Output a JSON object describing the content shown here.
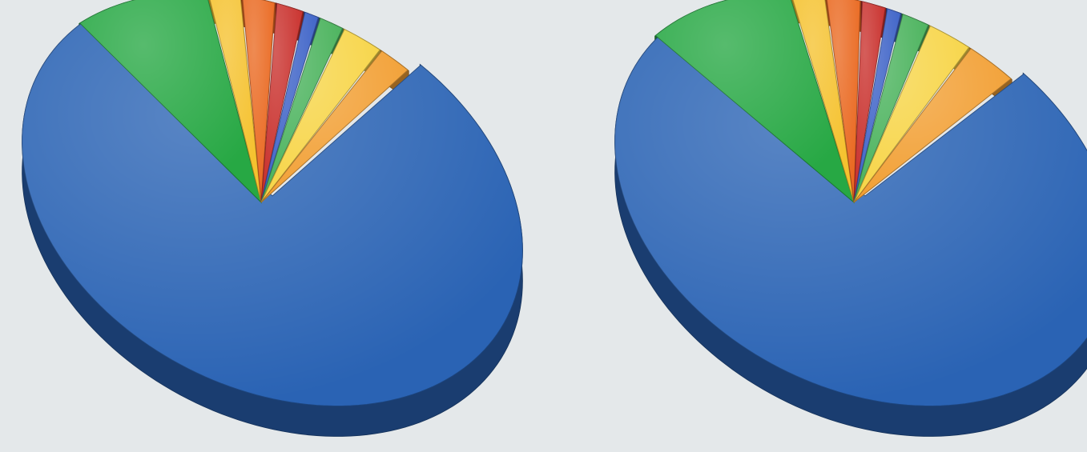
{
  "chart_data": [
    {
      "type": "pie",
      "style": "3d-tilted",
      "slices": [
        {
          "value": 77,
          "color": "#2a63b4"
        },
        {
          "value": 9.5,
          "color": "#27a844"
        },
        {
          "value": 2.2,
          "color": "#f5c22f"
        },
        {
          "value": 2.2,
          "color": "#ea6a22"
        },
        {
          "value": 1.8,
          "color": "#c9302c"
        },
        {
          "value": 1.0,
          "color": "#3f64c8"
        },
        {
          "value": 1.6,
          "color": "#4bb35d"
        },
        {
          "value": 2.6,
          "color": "#f7d548"
        },
        {
          "value": 2.1,
          "color": "#f2a035"
        }
      ]
    },
    {
      "type": "pie",
      "style": "3d-tilted",
      "slices": [
        {
          "value": 74.5,
          "color": "#2a63b4"
        },
        {
          "value": 10.5,
          "color": "#27a844"
        },
        {
          "value": 2.3,
          "color": "#f5c22f"
        },
        {
          "value": 2.3,
          "color": "#ea6a22"
        },
        {
          "value": 1.6,
          "color": "#c9302c"
        },
        {
          "value": 1.0,
          "color": "#3f64c8"
        },
        {
          "value": 1.8,
          "color": "#4bb35d"
        },
        {
          "value": 2.8,
          "color": "#f7d548"
        },
        {
          "value": 3.2,
          "color": "#f2a035"
        }
      ]
    }
  ]
}
